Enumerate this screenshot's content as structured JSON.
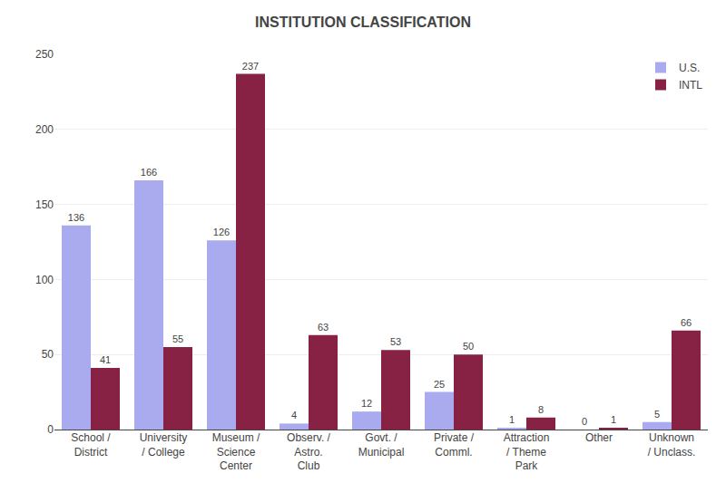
{
  "chart_data": {
    "type": "bar",
    "title": "INSTITUTION CLASSIFICATION",
    "categories": [
      "School /\nDistrict",
      "University\n/ College",
      "Museum /\nScience\nCenter",
      "Observ. /\nAstro.\nClub",
      "Govt. /\nMunicipal",
      "Private /\nComml.",
      "Attraction\n/ Theme\nPark",
      "Other",
      "Unknown\n/ Unclass."
    ],
    "series": [
      {
        "name": "U.S.",
        "color": "#aaaaee",
        "values": [
          136,
          166,
          126,
          4,
          12,
          25,
          1,
          0,
          5
        ]
      },
      {
        "name": "INTL",
        "color": "#882244",
        "values": [
          41,
          55,
          237,
          63,
          53,
          50,
          8,
          1,
          66
        ]
      }
    ],
    "ylim": [
      0,
      250
    ],
    "yticks": [
      0,
      50,
      100,
      150,
      200,
      250
    ],
    "grid": true,
    "legend": "top right",
    "data_labels": true
  }
}
